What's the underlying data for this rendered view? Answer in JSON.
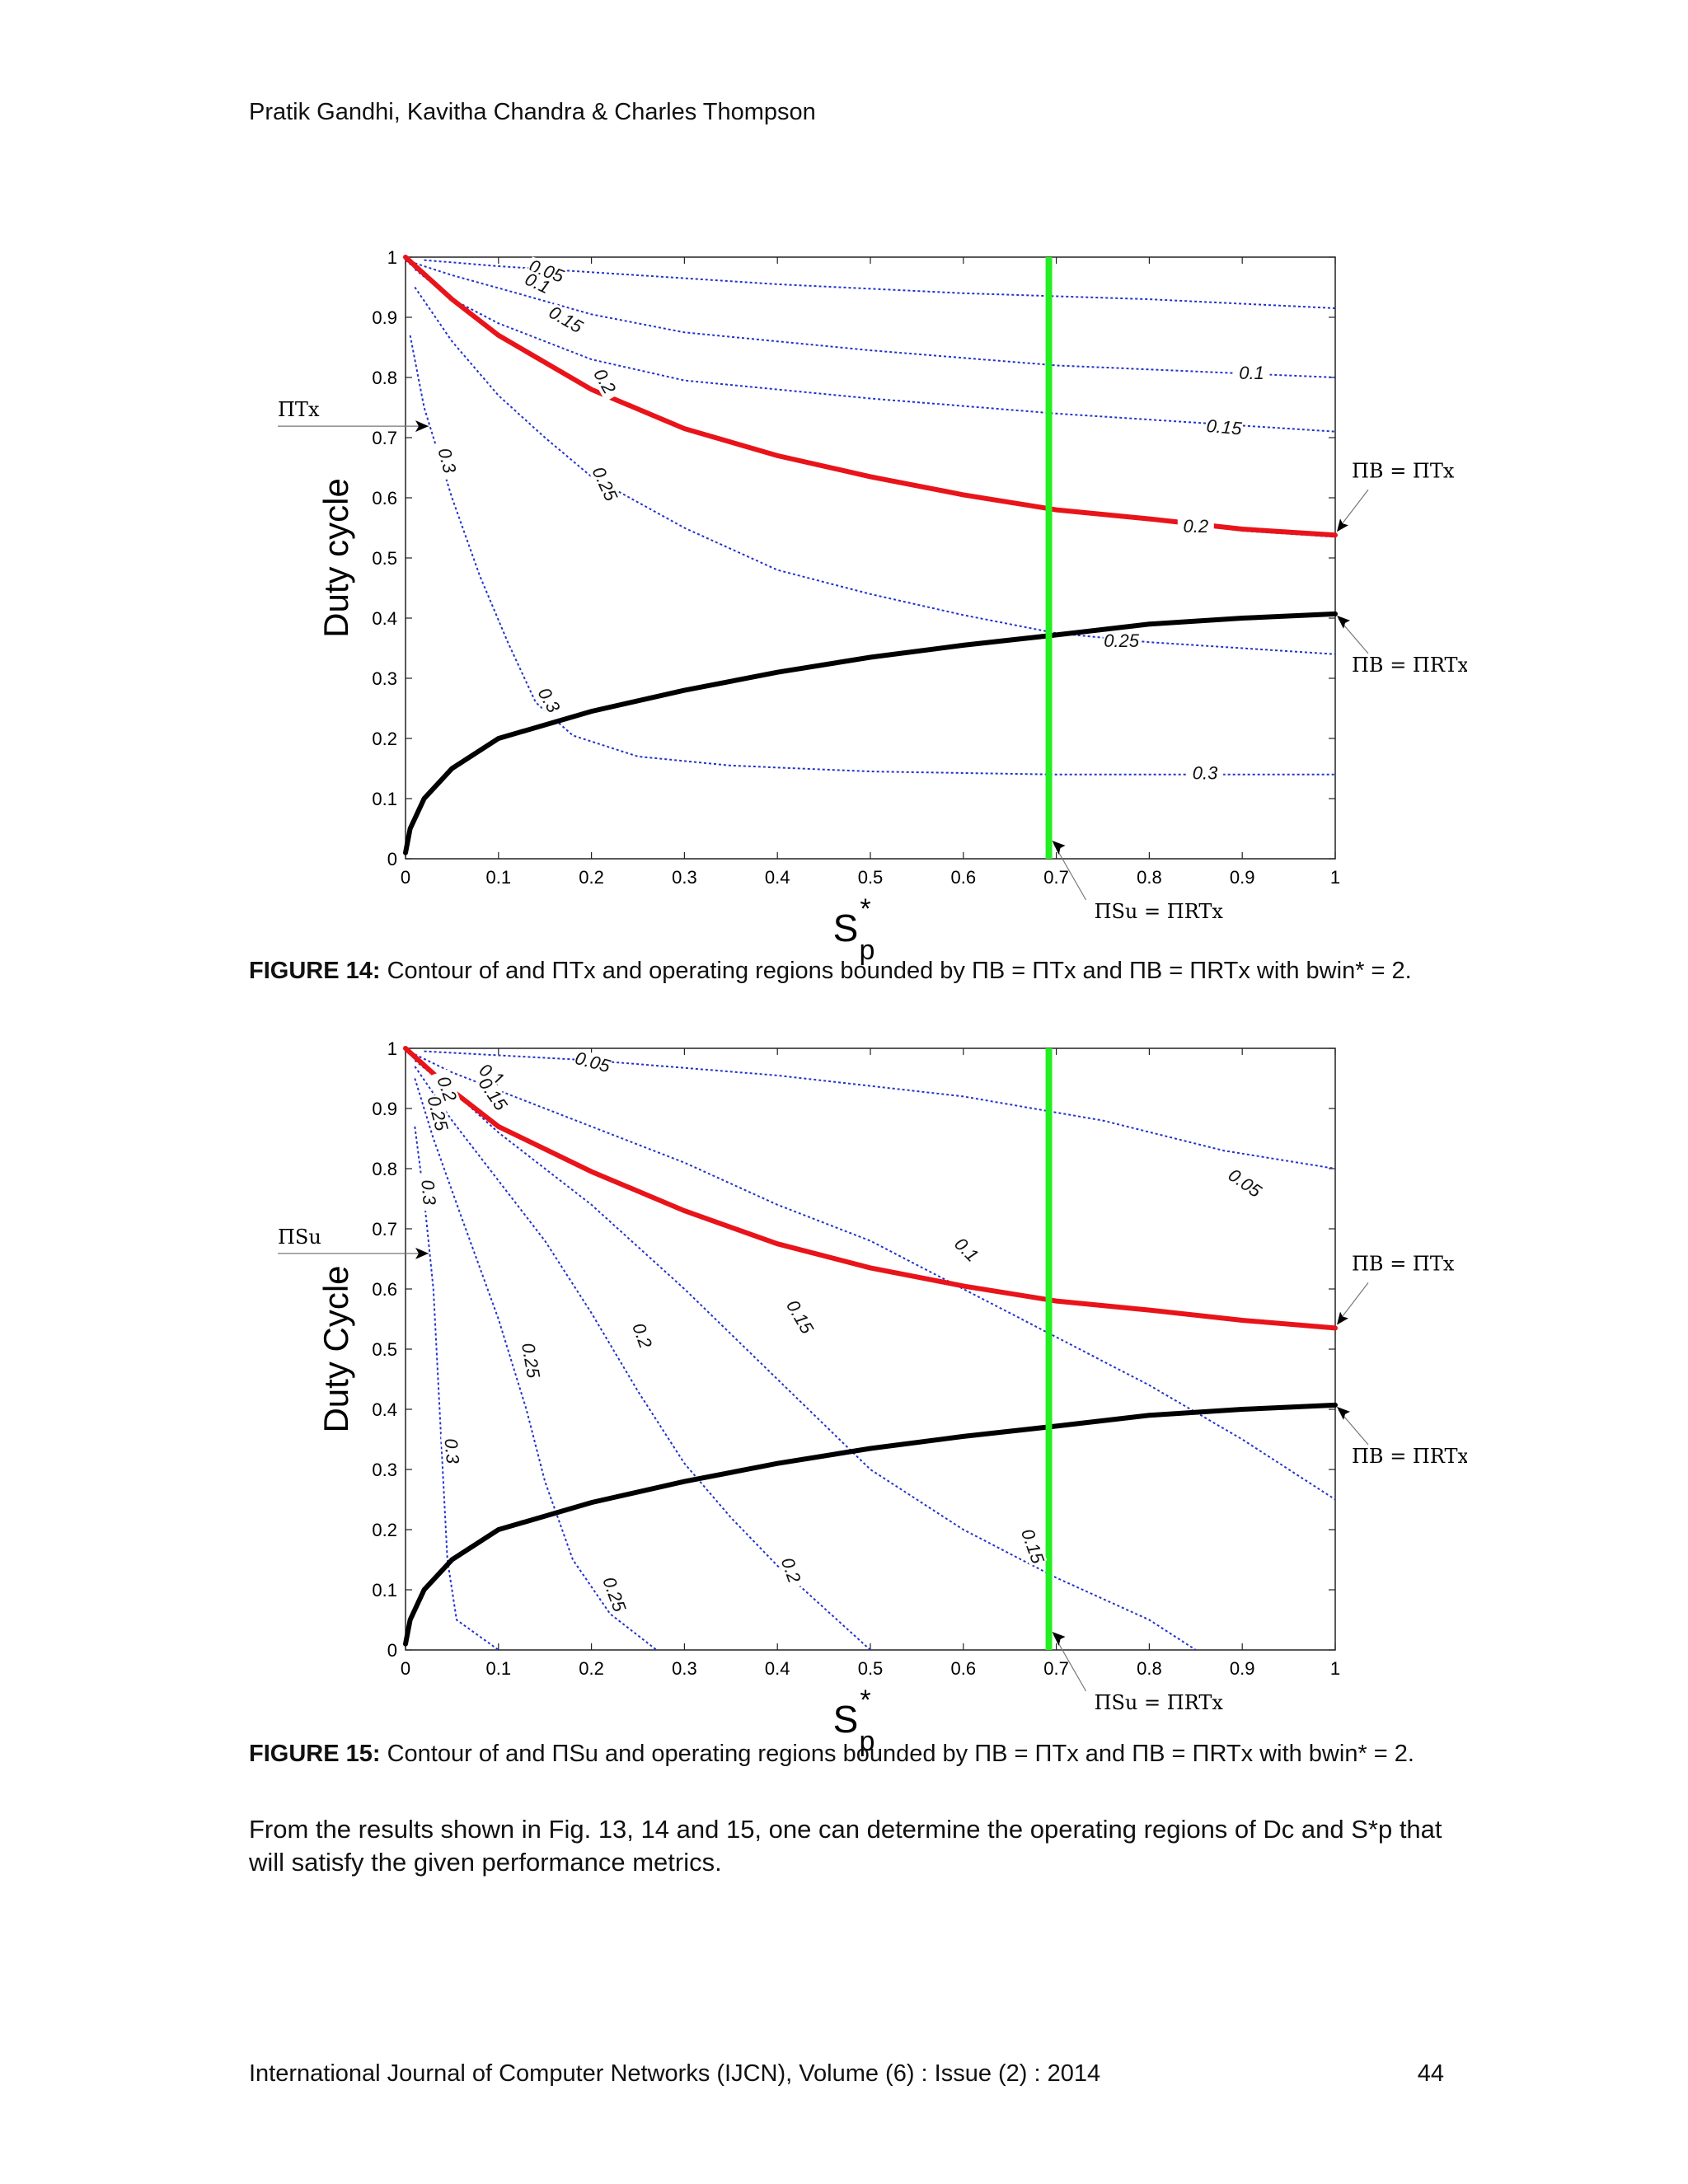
{
  "header": {
    "authors": "Pratik Gandhi, Kavitha Chandra & Charles Thompson"
  },
  "chart_data": [
    {
      "type": "contour",
      "figure_id": "fig14",
      "xlabel": "S",
      "xlabel_sup": "*",
      "xlabel_sub": "p",
      "ylabel": "Duty cycle",
      "xlim": [
        0,
        1
      ],
      "ylim": [
        0,
        1
      ],
      "x_ticks": [
        "0",
        "0.1",
        "0.2",
        "0.3",
        "0.4",
        "0.5",
        "0.6",
        "0.7",
        "0.8",
        "0.9",
        "1"
      ],
      "y_ticks": [
        "0",
        "0.1",
        "0.2",
        "0.3",
        "0.4",
        "0.5",
        "0.6",
        "0.7",
        "0.8",
        "0.9",
        "1"
      ],
      "contours": [
        {
          "level": "0.05",
          "points": [
            [
              0.02,
              0.995
            ],
            [
              0.1,
              0.985
            ],
            [
              0.2,
              0.975
            ],
            [
              0.4,
              0.955
            ],
            [
              0.6,
              0.94
            ],
            [
              0.8,
              0.93
            ],
            [
              1.0,
              0.915
            ]
          ]
        },
        {
          "level": "0.1",
          "points": [
            [
              0.01,
              0.99
            ],
            [
              0.05,
              0.97
            ],
            [
              0.12,
              0.94
            ],
            [
              0.2,
              0.905
            ],
            [
              0.3,
              0.875
            ],
            [
              0.5,
              0.845
            ],
            [
              0.7,
              0.82
            ],
            [
              0.85,
              0.81
            ],
            [
              1.0,
              0.8
            ]
          ]
        },
        {
          "level": "0.15",
          "points": [
            [
              0.01,
              0.98
            ],
            [
              0.05,
              0.93
            ],
            [
              0.1,
              0.89
            ],
            [
              0.2,
              0.83
            ],
            [
              0.3,
              0.795
            ],
            [
              0.5,
              0.765
            ],
            [
              0.7,
              0.74
            ],
            [
              0.85,
              0.725
            ],
            [
              1.0,
              0.71
            ]
          ]
        },
        {
          "level": "0.2",
          "points": [
            [
              0.0,
              0.995
            ],
            [
              0.05,
              0.93
            ],
            [
              0.1,
              0.87
            ],
            [
              0.2,
              0.78
            ],
            [
              0.3,
              0.715
            ],
            [
              0.4,
              0.67
            ],
            [
              0.5,
              0.635
            ],
            [
              0.6,
              0.605
            ],
            [
              0.7,
              0.58
            ],
            [
              0.8,
              0.565
            ],
            [
              0.9,
              0.545
            ],
            [
              1.0,
              0.535
            ]
          ]
        },
        {
          "level": "0.25",
          "points": [
            [
              0.01,
              0.95
            ],
            [
              0.05,
              0.86
            ],
            [
              0.1,
              0.77
            ],
            [
              0.15,
              0.7
            ],
            [
              0.2,
              0.635
            ],
            [
              0.3,
              0.55
            ],
            [
              0.4,
              0.48
            ],
            [
              0.5,
              0.44
            ],
            [
              0.6,
              0.405
            ],
            [
              0.7,
              0.375
            ],
            [
              0.8,
              0.36
            ],
            [
              0.9,
              0.35
            ],
            [
              1.0,
              0.34
            ]
          ]
        },
        {
          "level": "0.3",
          "points": [
            [
              0.005,
              0.87
            ],
            [
              0.02,
              0.75
            ],
            [
              0.05,
              0.6
            ],
            [
              0.08,
              0.47
            ],
            [
              0.11,
              0.36
            ],
            [
              0.14,
              0.26
            ],
            [
              0.18,
              0.205
            ],
            [
              0.25,
              0.17
            ],
            [
              0.35,
              0.155
            ],
            [
              0.5,
              0.145
            ],
            [
              0.7,
              0.14
            ],
            [
              1.0,
              0.14
            ]
          ]
        }
      ],
      "contour_labels": [
        {
          "text": "0.05",
          "x": 0.15,
          "y": 0.97,
          "rot": 20
        },
        {
          "text": "0.1",
          "x": 0.14,
          "y": 0.95,
          "rot": 25
        },
        {
          "text": "0.15",
          "x": 0.17,
          "y": 0.89,
          "rot": 30
        },
        {
          "text": "0.2",
          "x": 0.21,
          "y": 0.79,
          "rot": 60
        },
        {
          "text": "0.25",
          "x": 0.21,
          "y": 0.62,
          "rot": 65
        },
        {
          "text": "0.3",
          "x": 0.04,
          "y": 0.66,
          "rot": 75
        },
        {
          "text": "0.3",
          "x": 0.15,
          "y": 0.26,
          "rot": 60
        },
        {
          "text": "0.1",
          "x": 0.91,
          "y": 0.8,
          "rot": 0
        },
        {
          "text": "0.15",
          "x": 0.88,
          "y": 0.71,
          "rot": 5
        },
        {
          "text": "0.2",
          "x": 0.85,
          "y": 0.545,
          "rot": 0
        },
        {
          "text": "0.25",
          "x": 0.77,
          "y": 0.355,
          "rot": 0
        },
        {
          "text": "0.3",
          "x": 0.86,
          "y": 0.135,
          "rot": 0
        }
      ],
      "boundary_red": [
        [
          0.0,
          1.0
        ],
        [
          0.05,
          0.93
        ],
        [
          0.1,
          0.87
        ],
        [
          0.2,
          0.78
        ],
        [
          0.3,
          0.715
        ],
        [
          0.4,
          0.67
        ],
        [
          0.5,
          0.635
        ],
        [
          0.6,
          0.605
        ],
        [
          0.7,
          0.58
        ],
        [
          0.8,
          0.565
        ],
        [
          0.9,
          0.548
        ],
        [
          1.0,
          0.538
        ]
      ],
      "boundary_black": [
        [
          0.0,
          0.01
        ],
        [
          0.005,
          0.05
        ],
        [
          0.02,
          0.1
        ],
        [
          0.05,
          0.15
        ],
        [
          0.1,
          0.2
        ],
        [
          0.2,
          0.245
        ],
        [
          0.3,
          0.28
        ],
        [
          0.4,
          0.31
        ],
        [
          0.5,
          0.335
        ],
        [
          0.6,
          0.355
        ],
        [
          0.7,
          0.372
        ],
        [
          0.8,
          0.39
        ],
        [
          0.9,
          0.4
        ],
        [
          1.0,
          0.407
        ]
      ],
      "vline_x": 0.692,
      "annotations": {
        "left_label": "ΠTx",
        "left_y": 0.73,
        "red_label": "ΠB = ΠTx",
        "black_label": "ΠB = ΠRTx",
        "bottom_label": "ΠSu = ΠRTx"
      }
    },
    {
      "type": "contour",
      "figure_id": "fig15",
      "xlabel": "S",
      "xlabel_sup": "*",
      "xlabel_sub": "p",
      "ylabel": "Duty Cycle",
      "xlim": [
        0,
        1
      ],
      "ylim": [
        0,
        1
      ],
      "x_ticks": [
        "0",
        "0.1",
        "0.2",
        "0.3",
        "0.4",
        "0.5",
        "0.6",
        "0.7",
        "0.8",
        "0.9",
        "1"
      ],
      "y_ticks": [
        "0",
        "0.1",
        "0.2",
        "0.3",
        "0.4",
        "0.5",
        "0.6",
        "0.7",
        "0.8",
        "0.9",
        "1"
      ],
      "contours": [
        {
          "level": "0.05",
          "points": [
            [
              0.02,
              0.995
            ],
            [
              0.2,
              0.98
            ],
            [
              0.4,
              0.955
            ],
            [
              0.6,
              0.92
            ],
            [
              0.75,
              0.88
            ],
            [
              0.88,
              0.83
            ],
            [
              1.0,
              0.8
            ]
          ]
        },
        {
          "level": "0.1",
          "points": [
            [
              0.01,
              0.99
            ],
            [
              0.05,
              0.96
            ],
            [
              0.1,
              0.93
            ],
            [
              0.2,
              0.87
            ],
            [
              0.3,
              0.81
            ],
            [
              0.4,
              0.74
            ],
            [
              0.5,
              0.68
            ],
            [
              0.6,
              0.6
            ],
            [
              0.7,
              0.52
            ],
            [
              0.8,
              0.44
            ],
            [
              0.9,
              0.35
            ],
            [
              1.0,
              0.25
            ]
          ]
        },
        {
          "level": "0.15",
          "points": [
            [
              0.01,
              0.98
            ],
            [
              0.05,
              0.93
            ],
            [
              0.1,
              0.86
            ],
            [
              0.2,
              0.74
            ],
            [
              0.3,
              0.6
            ],
            [
              0.4,
              0.45
            ],
            [
              0.5,
              0.3
            ],
            [
              0.6,
              0.2
            ],
            [
              0.7,
              0.12
            ],
            [
              0.8,
              0.05
            ],
            [
              0.85,
              0.0
            ]
          ]
        },
        {
          "level": "0.2",
          "points": [
            [
              0.01,
              0.97
            ],
            [
              0.05,
              0.88
            ],
            [
              0.1,
              0.78
            ],
            [
              0.15,
              0.68
            ],
            [
              0.2,
              0.56
            ],
            [
              0.25,
              0.43
            ],
            [
              0.3,
              0.31
            ],
            [
              0.35,
              0.22
            ],
            [
              0.4,
              0.14
            ],
            [
              0.45,
              0.07
            ],
            [
              0.5,
              0.0
            ]
          ]
        },
        {
          "level": "0.25",
          "points": [
            [
              0.01,
              0.95
            ],
            [
              0.03,
              0.85
            ],
            [
              0.06,
              0.72
            ],
            [
              0.1,
              0.55
            ],
            [
              0.13,
              0.4
            ],
            [
              0.15,
              0.28
            ],
            [
              0.18,
              0.15
            ],
            [
              0.22,
              0.06
            ],
            [
              0.27,
              0.0
            ]
          ]
        },
        {
          "level": "0.3",
          "points": [
            [
              0.01,
              0.87
            ],
            [
              0.02,
              0.75
            ],
            [
              0.03,
              0.6
            ],
            [
              0.035,
              0.45
            ],
            [
              0.04,
              0.3
            ],
            [
              0.045,
              0.15
            ],
            [
              0.055,
              0.05
            ],
            [
              0.1,
              0.0
            ]
          ]
        }
      ],
      "contour_labels": [
        {
          "text": "0.05",
          "x": 0.2,
          "y": 0.97,
          "rot": 15
        },
        {
          "text": "0.1",
          "x": 0.09,
          "y": 0.95,
          "rot": 35
        },
        {
          "text": "0.15",
          "x": 0.09,
          "y": 0.92,
          "rot": 55
        },
        {
          "text": "0.2",
          "x": 0.04,
          "y": 0.93,
          "rot": 70
        },
        {
          "text": "0.25",
          "x": 0.03,
          "y": 0.89,
          "rot": 75
        },
        {
          "text": "0.3",
          "x": 0.02,
          "y": 0.76,
          "rot": 85
        },
        {
          "text": "0.3",
          "x": 0.045,
          "y": 0.33,
          "rot": 85
        },
        {
          "text": "0.25",
          "x": 0.13,
          "y": 0.48,
          "rot": 80
        },
        {
          "text": "0.2",
          "x": 0.25,
          "y": 0.52,
          "rot": 70
        },
        {
          "text": "0.15",
          "x": 0.42,
          "y": 0.55,
          "rot": 60
        },
        {
          "text": "0.1",
          "x": 0.6,
          "y": 0.66,
          "rot": 45
        },
        {
          "text": "0.05",
          "x": 0.9,
          "y": 0.77,
          "rot": 35
        },
        {
          "text": "0.15",
          "x": 0.67,
          "y": 0.17,
          "rot": 70
        },
        {
          "text": "0.2",
          "x": 0.41,
          "y": 0.13,
          "rot": 70
        },
        {
          "text": "0.25",
          "x": 0.22,
          "y": 0.09,
          "rot": 70
        }
      ],
      "boundary_red": [
        [
          0.0,
          1.0
        ],
        [
          0.05,
          0.93
        ],
        [
          0.1,
          0.87
        ],
        [
          0.2,
          0.795
        ],
        [
          0.3,
          0.73
        ],
        [
          0.4,
          0.675
        ],
        [
          0.5,
          0.635
        ],
        [
          0.6,
          0.605
        ],
        [
          0.7,
          0.58
        ],
        [
          0.8,
          0.565
        ],
        [
          0.9,
          0.548
        ],
        [
          1.0,
          0.535
        ]
      ],
      "boundary_black": [
        [
          0.0,
          0.01
        ],
        [
          0.005,
          0.05
        ],
        [
          0.02,
          0.1
        ],
        [
          0.05,
          0.15
        ],
        [
          0.1,
          0.2
        ],
        [
          0.2,
          0.245
        ],
        [
          0.3,
          0.28
        ],
        [
          0.4,
          0.31
        ],
        [
          0.5,
          0.335
        ],
        [
          0.6,
          0.355
        ],
        [
          0.7,
          0.372
        ],
        [
          0.8,
          0.39
        ],
        [
          0.9,
          0.4
        ],
        [
          1.0,
          0.407
        ]
      ],
      "vline_x": 0.692,
      "annotations": {
        "left_label": "ΠSu",
        "left_y": 0.67,
        "red_label": "ΠB = ΠTx",
        "black_label": "ΠB = ΠRTx",
        "bottom_label": "ΠSu = ΠRTx"
      }
    }
  ],
  "captions": {
    "fig14_label": "FIGURE 14:",
    "fig14_text": "Contour of and ΠTx and operating regions bounded by ΠB = ΠTx and ΠB = ΠRTx with bwin* = 2.",
    "fig15_label": "FIGURE 15:",
    "fig15_text": "Contour of and ΠSu and operating regions bounded by ΠB = ΠTx and ΠB = ΠRTx with bwin* = 2."
  },
  "body": {
    "paragraph": "From the results shown in Fig. 13, 14 and 15, one can determine the operating regions of Dc and S*p that will satisfy the given performance metrics."
  },
  "footer": {
    "journal": "International Journal of Computer Networks (IJCN), Volume (6) : Issue (2) : 2014",
    "page": "44"
  },
  "colors": {
    "contour": "#2233cc",
    "red_boundary": "#e8141a",
    "black_boundary": "#000000",
    "vline": "#22ee22"
  }
}
